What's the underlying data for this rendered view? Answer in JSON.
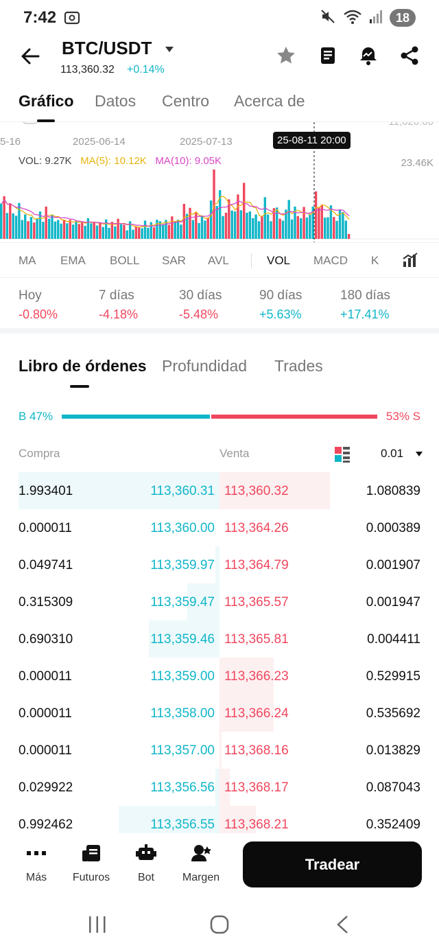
{
  "status_bar": {
    "time": "7:42",
    "battery": "18"
  },
  "header": {
    "pair": "BTC/USDT",
    "price": "113,360.32",
    "change": "+0.14%"
  },
  "main_tabs": [
    {
      "label": "Gráfico"
    },
    {
      "label": "Datos"
    },
    {
      "label": "Centro"
    },
    {
      "label": "Acerca de"
    }
  ],
  "chart": {
    "dates": [
      "5-16",
      "2025-06-14",
      "2025-07-13"
    ],
    "crosshair_label": "25-08-11 20:00",
    "vol_label": "VOL: 9.27K",
    "ma5_label": "MA(5): 10.12K",
    "ma10_label": "MA(10): 9.05K",
    "max_label": "23.46K",
    "top_faded": "11,020.00",
    "colors": {
      "up": "#10b6c8",
      "down": "#f0475e",
      "ma5": "#e8b40f",
      "ma10": "#d548c5"
    }
  },
  "chart_data": {
    "type": "bar",
    "title": "",
    "ylabel": "",
    "ylim": [
      0,
      23460
    ],
    "series": [
      {
        "values": [
          11600,
          14000,
          8500,
          11700,
          8400,
          7600,
          11800,
          6200,
          8000,
          5800,
          7200,
          5400,
          6800,
          9000,
          5600,
          10600,
          6600,
          7800,
          5700,
          6200,
          5000,
          6300,
          5100,
          6300,
          4700,
          5900,
          4900,
          5800,
          4300,
          6800,
          5100,
          5400,
          4400,
          5200,
          3900,
          6400,
          3600,
          5600,
          4100,
          6600,
          4800,
          4600,
          2800,
          5800,
          3000,
          4000,
          3700,
          3500,
          6000,
          3600,
          5500,
          3800,
          6300,
          5800,
          4800,
          6200,
          4600,
          7400,
          5700,
          6300,
          4700,
          11500,
          8200,
          10200,
          6200,
          8600,
          5200,
          7600,
          6000,
          6800,
          12600,
          22800,
          10800,
          16000,
          7500,
          8600,
          13000,
          9300,
          9000,
          14600,
          9400,
          18400,
          8600,
          9000,
          6800,
          8000,
          5800,
          7400,
          13700,
          8000,
          5800,
          10100,
          10300,
          6600,
          6000,
          9600,
          12800,
          6400,
          10600,
          7500,
          6800,
          10500,
          7000,
          8000,
          10600,
          15600,
          10500,
          11200,
          7000,
          7100,
          11000,
          7200,
          5900,
          9600,
          8800,
          6000,
          1600
        ]
      }
    ]
  },
  "indicators": [
    {
      "label": "MA"
    },
    {
      "label": "EMA"
    },
    {
      "label": "BOLL"
    },
    {
      "label": "SAR"
    },
    {
      "label": "AVL"
    },
    {
      "label": "VOL"
    },
    {
      "label": "MACD"
    },
    {
      "label": "K"
    }
  ],
  "periods": [
    {
      "label": "Hoy",
      "value": "-0.80%"
    },
    {
      "label": "7 días",
      "value": "-4.18%"
    },
    {
      "label": "30 días",
      "value": "-5.48%"
    },
    {
      "label": "90 días",
      "value": "+5.63%"
    },
    {
      "label": "180 días",
      "value": "+17.41%"
    }
  ],
  "orderbook_tabs": [
    {
      "label": "Libro de órdenes"
    },
    {
      "label": "Profundidad"
    },
    {
      "label": "Trades"
    }
  ],
  "ratio": {
    "buy_label": "B 47%",
    "sell_label": "53% S",
    "buy_fraction": 0.47
  },
  "orderbook_header": {
    "buy": "Compra",
    "sell": "Venta",
    "precision": "0.01"
  },
  "orderbook": [
    {
      "bid_qty": "1.993401",
      "bid_price": "113,360.31",
      "ask_price": "113,360.32",
      "ask_qty": "1.080839",
      "bid_depth": 1.0,
      "ask_depth": 0.55
    },
    {
      "bid_qty": "0.000011",
      "bid_price": "113,360.00",
      "ask_price": "113,364.26",
      "ask_qty": "0.000389",
      "bid_depth": 0.0,
      "ask_depth": 0.0
    },
    {
      "bid_qty": "0.049741",
      "bid_price": "113,359.97",
      "ask_price": "113,364.79",
      "ask_qty": "0.001907",
      "bid_depth": 0.02,
      "ask_depth": 0.0
    },
    {
      "bid_qty": "0.315309",
      "bid_price": "113,359.47",
      "ask_price": "113,365.57",
      "ask_qty": "0.001947",
      "bid_depth": 0.16,
      "ask_depth": 0.0
    },
    {
      "bid_qty": "0.690310",
      "bid_price": "113,359.46",
      "ask_price": "113,365.81",
      "ask_qty": "0.004411",
      "bid_depth": 0.35,
      "ask_depth": 0.0
    },
    {
      "bid_qty": "0.000011",
      "bid_price": "113,359.00",
      "ask_price": "113,366.23",
      "ask_qty": "0.529915",
      "bid_depth": 0.0,
      "ask_depth": 0.27
    },
    {
      "bid_qty": "0.000011",
      "bid_price": "113,358.00",
      "ask_price": "113,366.24",
      "ask_qty": "0.535692",
      "bid_depth": 0.0,
      "ask_depth": 0.27
    },
    {
      "bid_qty": "0.000011",
      "bid_price": "113,357.00",
      "ask_price": "113,368.16",
      "ask_qty": "0.013829",
      "bid_depth": 0.0,
      "ask_depth": 0.01
    },
    {
      "bid_qty": "0.029922",
      "bid_price": "113,356.56",
      "ask_price": "113,368.17",
      "ask_qty": "0.087043",
      "bid_depth": 0.02,
      "ask_depth": 0.05
    },
    {
      "bid_qty": "0.992462",
      "bid_price": "113,356.55",
      "ask_price": "113,368.21",
      "ask_qty": "0.352409",
      "bid_depth": 0.5,
      "ask_depth": 0.18
    }
  ],
  "bottom_bar": {
    "items": [
      {
        "label": "Más",
        "icon": "more-icon"
      },
      {
        "label": "Futuros",
        "icon": "futures-icon"
      },
      {
        "label": "Bot",
        "icon": "bot-icon"
      },
      {
        "label": "Margen",
        "icon": "margin-icon"
      }
    ],
    "trade_label": "Tradear"
  }
}
